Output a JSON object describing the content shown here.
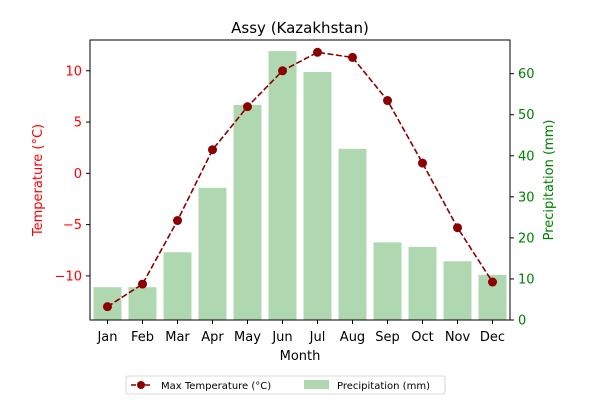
{
  "chart_data": {
    "type": "bar+line",
    "title": "Assy (Kazakhstan)",
    "xlabel": "Month",
    "ylabel_left": "Temperature (°C)",
    "ylabel_right": "Precipitation (mm)",
    "categories": [
      "Jan",
      "Feb",
      "Mar",
      "Apr",
      "May",
      "Jun",
      "Jul",
      "Aug",
      "Sep",
      "Oct",
      "Nov",
      "Dec"
    ],
    "series": [
      {
        "name": "Max Temperature (°C)",
        "type": "line",
        "axis": "left",
        "color": "#8b0000",
        "values": [
          -13.0,
          -10.8,
          -4.6,
          2.3,
          6.5,
          10.0,
          11.8,
          11.3,
          7.1,
          1.0,
          -5.3,
          -10.6
        ]
      },
      {
        "name": "Precipitation (mm)",
        "type": "bar",
        "axis": "right",
        "color": "#b0d8b0",
        "values": [
          8,
          8,
          16.5,
          32.2,
          52.4,
          65.5,
          60.4,
          41.7,
          18.9,
          17.8,
          14.3,
          11
        ]
      }
    ],
    "ylim_left": [
      -14.3,
      13.0
    ],
    "ylim_right": [
      0,
      68.2
    ],
    "yticks_left": [
      "−10",
      "−5",
      "0",
      "5",
      "10"
    ],
    "ytick_values_left": [
      -10,
      -5,
      0,
      5,
      10
    ],
    "yticks_right": [
      "0",
      "10",
      "20",
      "30",
      "40",
      "50",
      "60"
    ],
    "ytick_values_right": [
      0,
      10,
      20,
      30,
      40,
      50,
      60
    ],
    "left_axis_color": "#ff0000",
    "right_axis_color": "#008000",
    "grid": false,
    "legend_position": "bottom-center"
  }
}
